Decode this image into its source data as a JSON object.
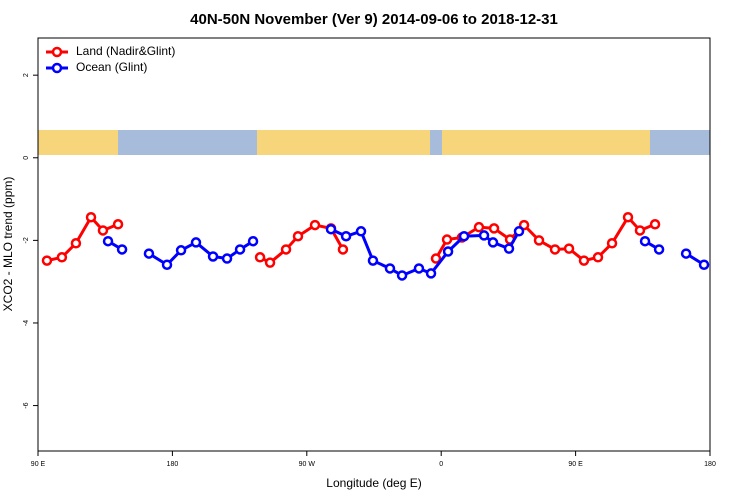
{
  "chart_data": {
    "type": "line",
    "title": "40N-50N November (Ver 9)   2014-09-06 to 2018-12-31",
    "x_label": "Longitude (deg E)",
    "y_label": "XCO2 - MLO trend (ppm)",
    "xlim": [
      90,
      540
    ],
    "ylim": [
      -7.1,
      2.9
    ],
    "xticks": [
      {
        "value": 90,
        "label": "90 E"
      },
      180,
      {
        "value": 270,
        "label": "90 W"
      },
      {
        "value": 360,
        "label": "0"
      },
      {
        "value": 450,
        "label": "90 E"
      },
      {
        "value": 540,
        "label": "180"
      }
    ],
    "yticks": [
      2,
      0,
      -2,
      -4,
      -6
    ],
    "legend": "top-left",
    "series": [
      {
        "name": "Land (Nadir&Glint)",
        "color": "#ff0000",
        "x": [
          96,
          106,
          115.4,
          125.5,
          133.5,
          143.6,
          null,
          238.7,
          245.4,
          256.1,
          264.1,
          275.5,
          286.2,
          294.2,
          null,
          356.5,
          363.9,
          373.9,
          385.3,
          395.4,
          406.1,
          415.5,
          425.5,
          436.2,
          445.6,
          455.6,
          465,
          474.4,
          485.1,
          493.1,
          503.2
        ],
        "values": [
          -2.49,
          -2.41,
          -2.07,
          -1.44,
          -1.76,
          -1.61,
          null,
          -2.41,
          -2.54,
          -2.22,
          -1.9,
          -1.63,
          -1.71,
          -2.22,
          null,
          -2.44,
          -1.98,
          -1.93,
          -1.68,
          -1.71,
          -1.98,
          -1.63,
          -2.0,
          -2.22,
          -2.2,
          -2.49,
          -2.41,
          -2.07,
          -1.44,
          -1.76,
          -1.61
        ]
      },
      {
        "name": "Ocean (Glint)",
        "color": "#0000ff",
        "x": [
          136.9,
          146.3,
          null,
          164.3,
          176.4,
          185.8,
          195.8,
          207.2,
          216.6,
          225.3,
          234,
          null,
          286.2,
          296.3,
          306.3,
          314.3,
          325.7,
          333.8,
          345.1,
          353.2,
          364.6,
          375.3,
          388.7,
          394.7,
          405.4,
          412.1,
          null,
          496.5,
          505.9,
          null,
          524,
          536
        ],
        "values": [
          -2.02,
          -2.22,
          null,
          -2.32,
          -2.59,
          -2.24,
          -2.05,
          -2.39,
          -2.44,
          -2.22,
          -2.02,
          null,
          -1.73,
          -1.9,
          -1.78,
          -2.49,
          -2.68,
          -2.85,
          -2.68,
          -2.8,
          -2.27,
          -1.9,
          -1.88,
          -2.05,
          -2.2,
          -1.78,
          null,
          -2.02,
          -2.22,
          null,
          -2.32,
          -2.59
        ]
      }
    ]
  }
}
